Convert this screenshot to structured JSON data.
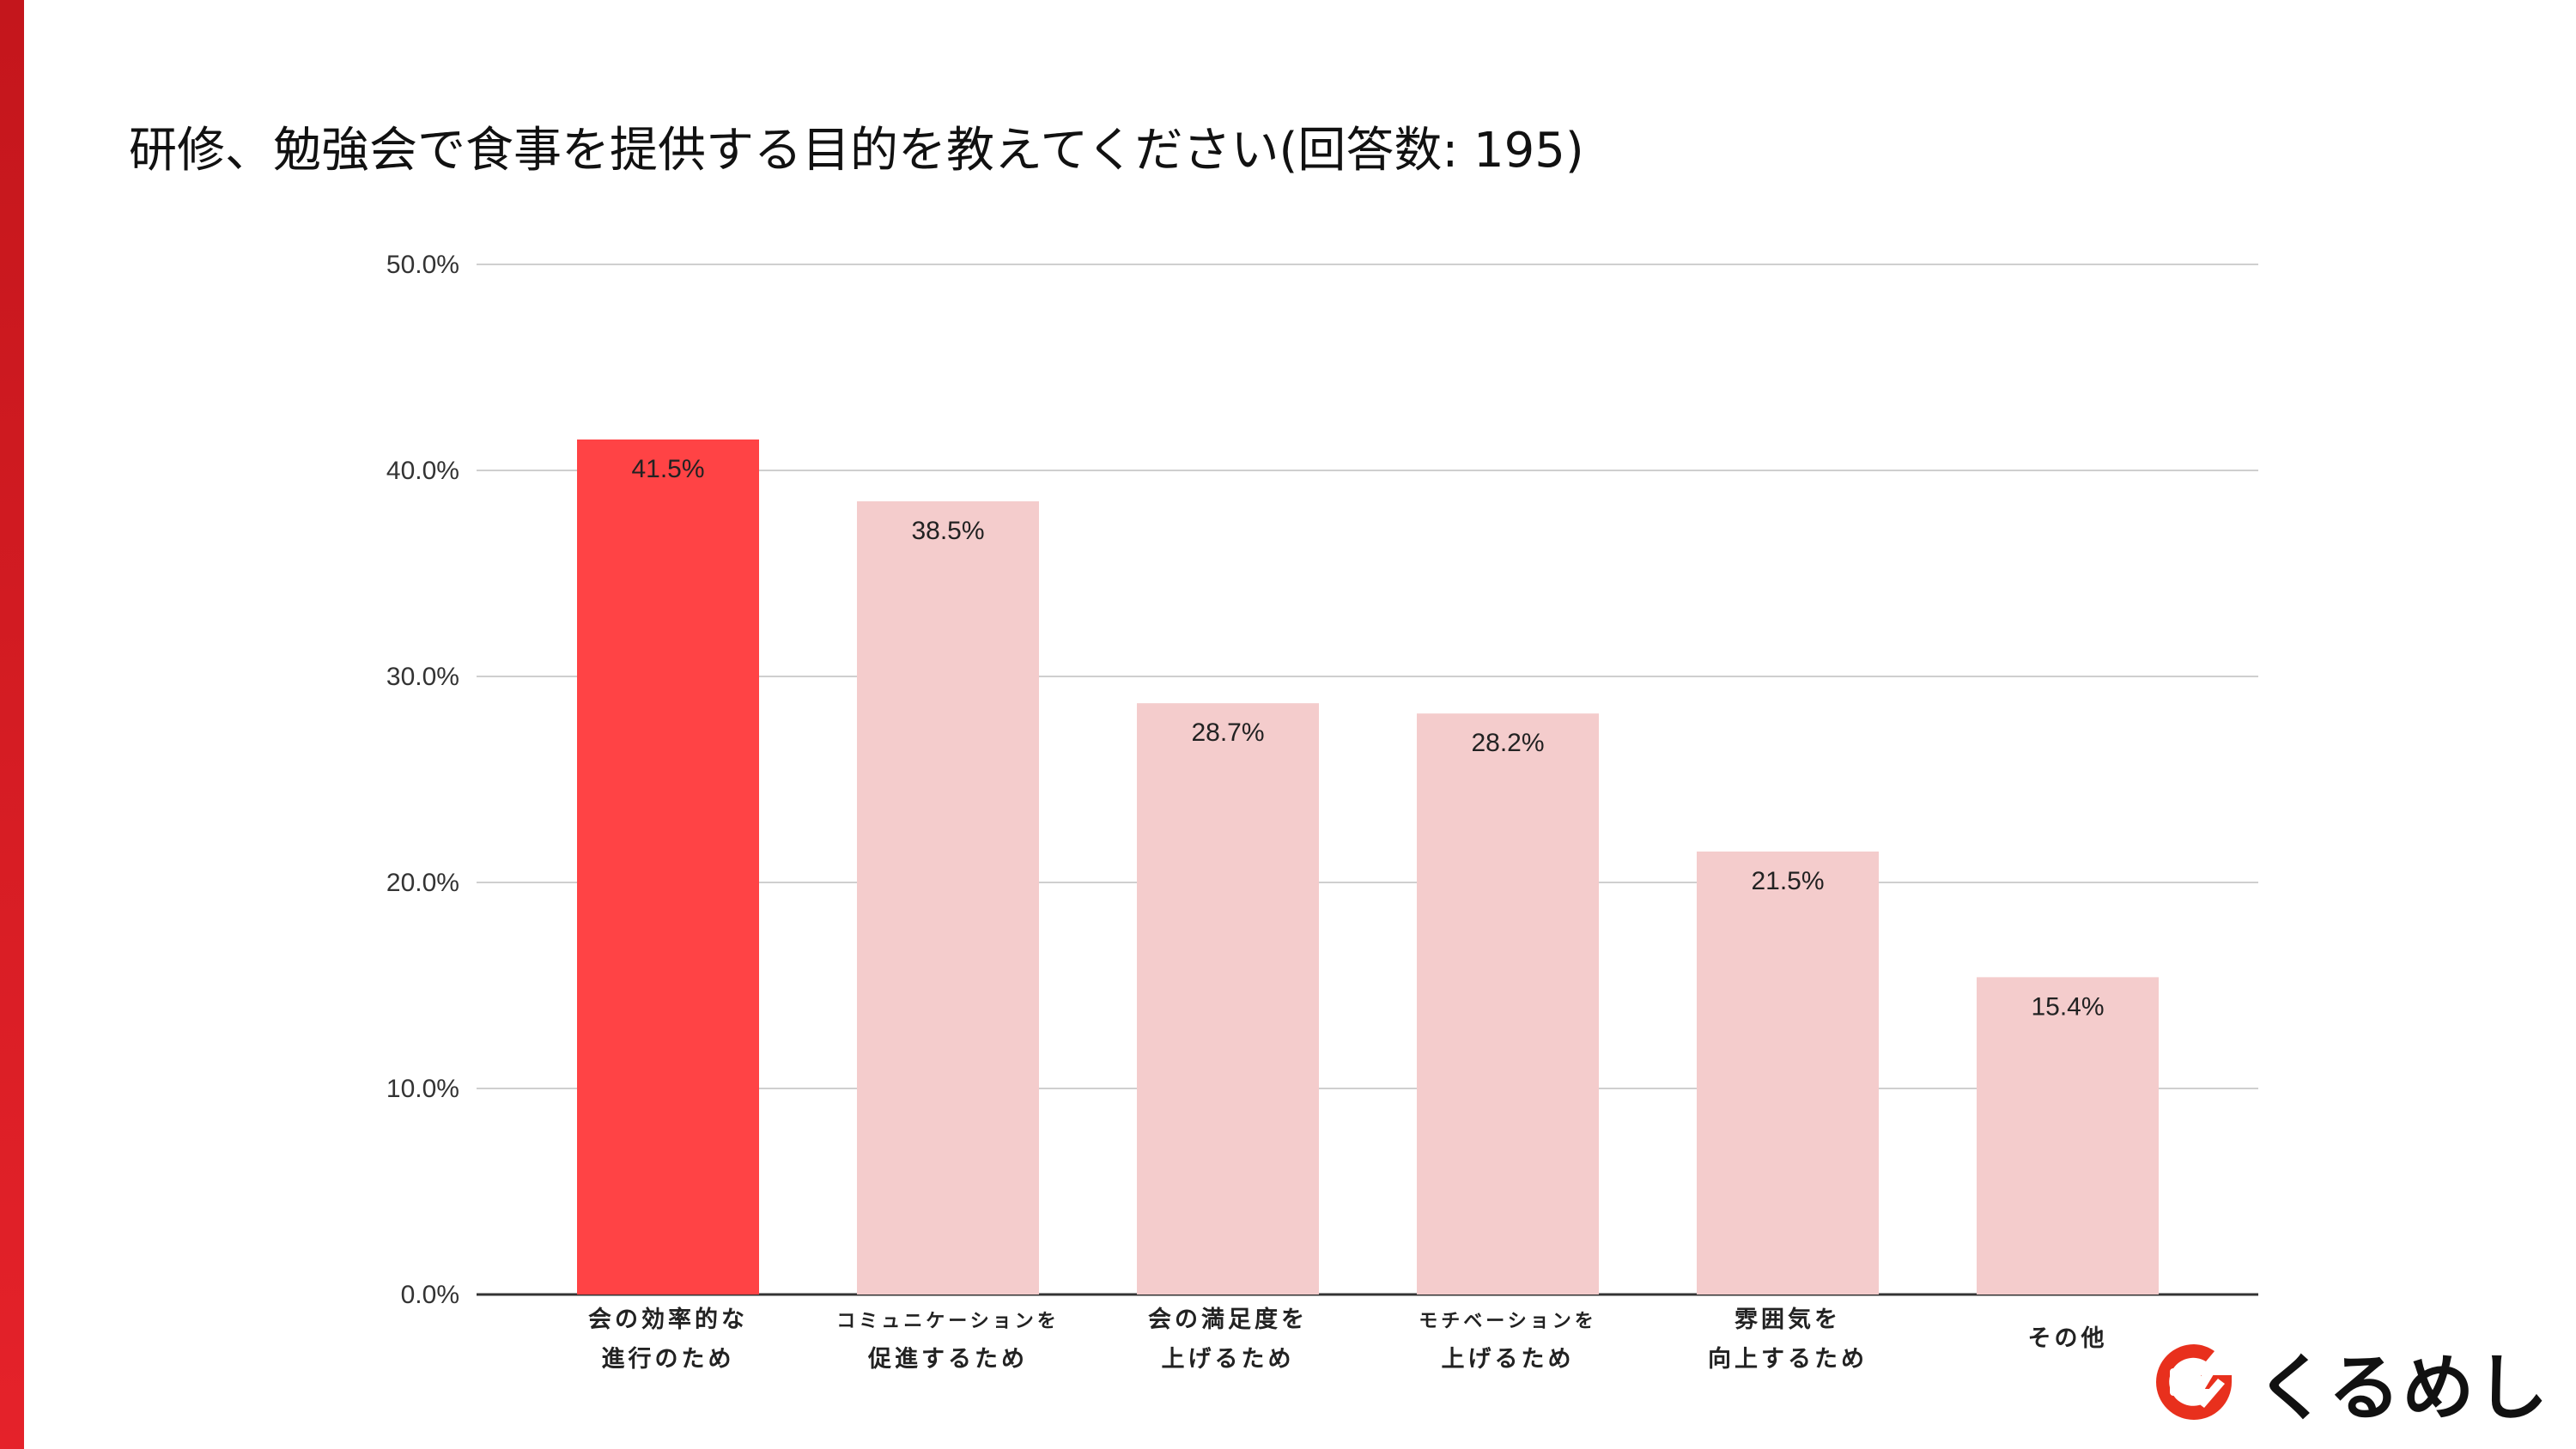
{
  "slide": {
    "title": "研修、勉強会で食事を提供する目的を教えてください(回答数: 195)",
    "accent_color": "#d9181f"
  },
  "logo": {
    "text": "くるめし",
    "color": "#e8301d",
    "icon": "kurumeshi-logo-icon"
  },
  "chart_data": {
    "type": "bar",
    "title": "研修、勉強会で食事を提供する目的を教えてください(回答数: 195)",
    "xlabel": "",
    "ylabel": "",
    "ylim": [
      0,
      50
    ],
    "yticks": [
      0,
      10,
      20,
      30,
      40,
      50
    ],
    "ytick_labels": [
      "0.0%",
      "10.0%",
      "20.0%",
      "30.0%",
      "40.0%",
      "50.0%"
    ],
    "grid": true,
    "legend": "none",
    "categories": [
      [
        "会の効率的な",
        "進行のため"
      ],
      [
        "コミュニケーションを",
        "促進するため"
      ],
      [
        "会の満足度を",
        "上げるため"
      ],
      [
        "モチベーションを",
        "上げるため"
      ],
      [
        "雰囲気を",
        "向上するため"
      ],
      [
        "その他"
      ]
    ],
    "values": [
      41.5,
      38.5,
      28.7,
      28.2,
      21.5,
      15.4
    ],
    "value_labels": [
      "41.5%",
      "38.5%",
      "28.7%",
      "28.2%",
      "21.5%",
      "15.4%"
    ],
    "colors": [
      "#ff4345",
      "#f4cccc",
      "#f4cccc",
      "#f4cccc",
      "#f4cccc",
      "#f4cccc"
    ],
    "highlight_index": 0
  }
}
